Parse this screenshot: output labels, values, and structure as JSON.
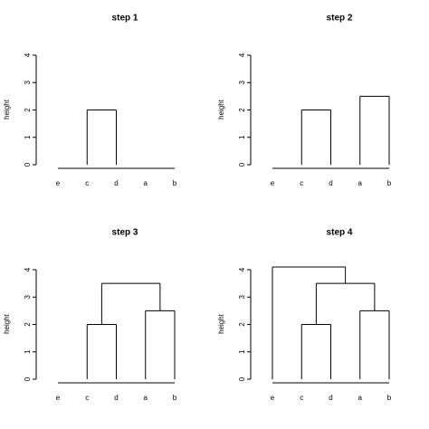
{
  "chart_data": [
    {
      "type": "dendrogram",
      "title": "step 1",
      "y_label": "height",
      "categories": [
        "e",
        "c",
        "d",
        "a",
        "b"
      ],
      "ylim": [
        0,
        4
      ],
      "yticks": [
        0,
        1,
        2,
        3,
        4
      ],
      "color": "#000000",
      "merges": [
        {
          "leaves": [
            1,
            2
          ],
          "height": 2
        }
      ]
    },
    {
      "type": "dendrogram",
      "title": "step 2",
      "y_label": "height",
      "categories": [
        "e",
        "c",
        "d",
        "a",
        "b"
      ],
      "ylim": [
        0,
        4
      ],
      "yticks": [
        0,
        1,
        2,
        3,
        4
      ],
      "color": "#000000",
      "merges": [
        {
          "leaves": [
            1,
            2
          ],
          "height": 2
        },
        {
          "leaves": [
            3,
            4
          ],
          "height": 2.5
        }
      ]
    },
    {
      "type": "dendrogram",
      "title": "step 3",
      "y_label": "height",
      "categories": [
        "e",
        "c",
        "d",
        "a",
        "b"
      ],
      "ylim": [
        0,
        4
      ],
      "yticks": [
        0,
        1,
        2,
        3,
        4
      ],
      "color": "#000000",
      "merges": [
        {
          "leaves": [
            1,
            2
          ],
          "height": 2
        },
        {
          "leaves": [
            3,
            4
          ],
          "height": 2.5
        },
        {
          "merges": [
            0,
            1
          ],
          "height": 3.5
        }
      ]
    },
    {
      "type": "dendrogram",
      "title": "step 4",
      "y_label": "height",
      "categories": [
        "e",
        "c",
        "d",
        "a",
        "b"
      ],
      "ylim": [
        0,
        4
      ],
      "yticks": [
        0,
        1,
        2,
        3,
        4
      ],
      "color": "#000000",
      "merges": [
        {
          "leaves": [
            1,
            2
          ],
          "height": 2
        },
        {
          "leaves": [
            3,
            4
          ],
          "height": 2.5
        },
        {
          "merges": [
            0,
            1
          ],
          "height": 3.5
        },
        {
          "leaves": [
            0
          ],
          "merges": [
            2
          ],
          "height": 4.1
        }
      ]
    }
  ]
}
